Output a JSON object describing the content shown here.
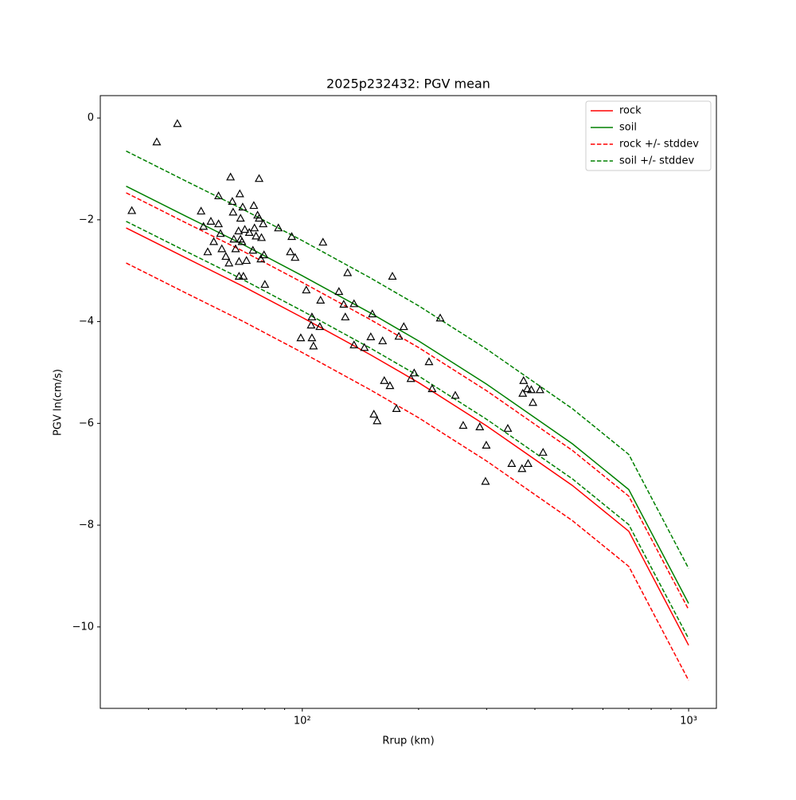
{
  "chart_data": {
    "type": "line",
    "title": "2025p232432: PGV mean",
    "xlabel": "Rrup (km)",
    "ylabel": "PGV ln(cm/s)",
    "xscale": "log",
    "xlim": [
      30,
      1180
    ],
    "ylim": [
      -11.6,
      0.44
    ],
    "xticks": [
      {
        "value": 100,
        "label": "10²"
      },
      {
        "value": 1000,
        "label": "10³"
      }
    ],
    "xminorticks": [
      40,
      50,
      60,
      70,
      80,
      90,
      200,
      300,
      400,
      500,
      600,
      700,
      800,
      900
    ],
    "yticks": [
      0,
      {
        "value": -2,
        "label": "−2"
      },
      {
        "value": -4,
        "label": "−4"
      },
      {
        "value": -6,
        "label": "−6"
      },
      {
        "value": -8,
        "label": "−8"
      },
      {
        "value": -10,
        "label": "−10"
      }
    ],
    "legend": "upper right",
    "x": [
      35,
      50,
      70,
      100,
      150,
      200,
      300,
      500,
      700,
      1000
    ],
    "series": [
      {
        "name": "rock",
        "color": "#ff0000",
        "linestyle": "solid",
        "values": [
          -2.16,
          -2.75,
          -3.3,
          -3.92,
          -4.65,
          -5.2,
          -6.05,
          -7.22,
          -8.12,
          -10.36
        ]
      },
      {
        "name": "soil",
        "color": "#008000",
        "linestyle": "solid",
        "values": [
          -1.34,
          -1.93,
          -2.48,
          -3.1,
          -3.83,
          -4.38,
          -5.23,
          -6.4,
          -7.3,
          -9.54
        ]
      },
      {
        "name": "rock +/- stddev",
        "color": "#ff0000",
        "linestyle": "dashed",
        "upper": [
          -1.47,
          -2.06,
          -2.61,
          -3.23,
          -3.96,
          -4.51,
          -5.36,
          -6.53,
          -7.43,
          -9.66
        ],
        "lower": [
          -2.85,
          -3.44,
          -3.99,
          -4.61,
          -5.34,
          -5.89,
          -6.74,
          -7.91,
          -8.81,
          -11.05
        ]
      },
      {
        "name": "soil +/- stddev",
        "color": "#008000",
        "linestyle": "dashed",
        "upper": [
          -0.65,
          -1.24,
          -1.79,
          -2.41,
          -3.14,
          -3.69,
          -4.54,
          -5.71,
          -6.61,
          -8.85
        ],
        "lower": [
          -2.03,
          -2.62,
          -3.17,
          -3.79,
          -4.52,
          -5.07,
          -5.92,
          -7.09,
          -7.99,
          -10.23
        ]
      }
    ],
    "scatter": {
      "marker": "triangle",
      "color": "#000000",
      "x": [
        36.2,
        42.0,
        47.5,
        54.7,
        55.5,
        56.9,
        58.0,
        59.0,
        60.7,
        60.7,
        61.4,
        61.9,
        63.4,
        64.6,
        65.2,
        65.9,
        66.2,
        66.5,
        67.2,
        68.4,
        68.6,
        68.6,
        68.9,
        69.2,
        69.2,
        69.8,
        70.1,
        70.4,
        71.0,
        71.7,
        72.9,
        74.5,
        74.9,
        75.2,
        75.9,
        76.6,
        77.3,
        77.3,
        78.1,
        78.4,
        79.2,
        79.6,
        80.0,
        86.7,
        93.1,
        93.9,
        95.8,
        99.1,
        102.4,
        105.4,
        105.9,
        105.9,
        106.9,
        111.0,
        111.5,
        113.1,
        124.4,
        128.0,
        129.2,
        131.0,
        136.1,
        136.1,
        144.8,
        150.4,
        151.8,
        153.2,
        156.2,
        161.4,
        163.0,
        168.6,
        171.1,
        175.3,
        177.8,
        183.1,
        191.0,
        194.8,
        212.8,
        216.8,
        227.5,
        248.9,
        260.9,
        288.0,
        299.4,
        298.0,
        340.3,
        348.4,
        370.4,
        372.1,
        373.9,
        382.3,
        384.1,
        391.6,
        395.3,
        412.3,
        420.0
      ],
      "y": [
        -1.82,
        -0.47,
        -0.11,
        -1.83,
        -2.13,
        -2.63,
        -2.03,
        -2.43,
        -1.53,
        -2.08,
        -2.27,
        -2.57,
        -2.72,
        -2.85,
        -1.16,
        -1.64,
        -1.85,
        -2.38,
        -2.57,
        -2.22,
        -2.82,
        -3.11,
        -1.49,
        -1.97,
        -2.38,
        -2.43,
        -1.75,
        -3.11,
        -2.19,
        -2.8,
        -2.25,
        -2.6,
        -1.72,
        -2.16,
        -2.32,
        -1.91,
        -1.97,
        -1.19,
        -2.77,
        -2.35,
        -2.08,
        -2.69,
        -3.27,
        -2.16,
        -2.63,
        -2.33,
        -2.74,
        -4.32,
        -3.38,
        -4.07,
        -3.91,
        -4.32,
        -4.48,
        -4.1,
        -3.58,
        -2.44,
        -3.41,
        -3.66,
        -3.91,
        -3.04,
        -3.65,
        -4.46,
        -4.51,
        -4.3,
        -3.85,
        -5.82,
        -5.95,
        -4.38,
        -5.16,
        -5.26,
        -3.11,
        -5.71,
        -4.29,
        -4.1,
        -5.12,
        -5.01,
        -4.79,
        -5.32,
        -3.93,
        -5.45,
        -6.04,
        -6.07,
        -6.43,
        -7.14,
        -6.1,
        -6.79,
        -6.89,
        -5.41,
        -5.16,
        -5.32,
        -6.79,
        -5.34,
        -5.59,
        -5.34,
        -6.57
      ]
    }
  }
}
